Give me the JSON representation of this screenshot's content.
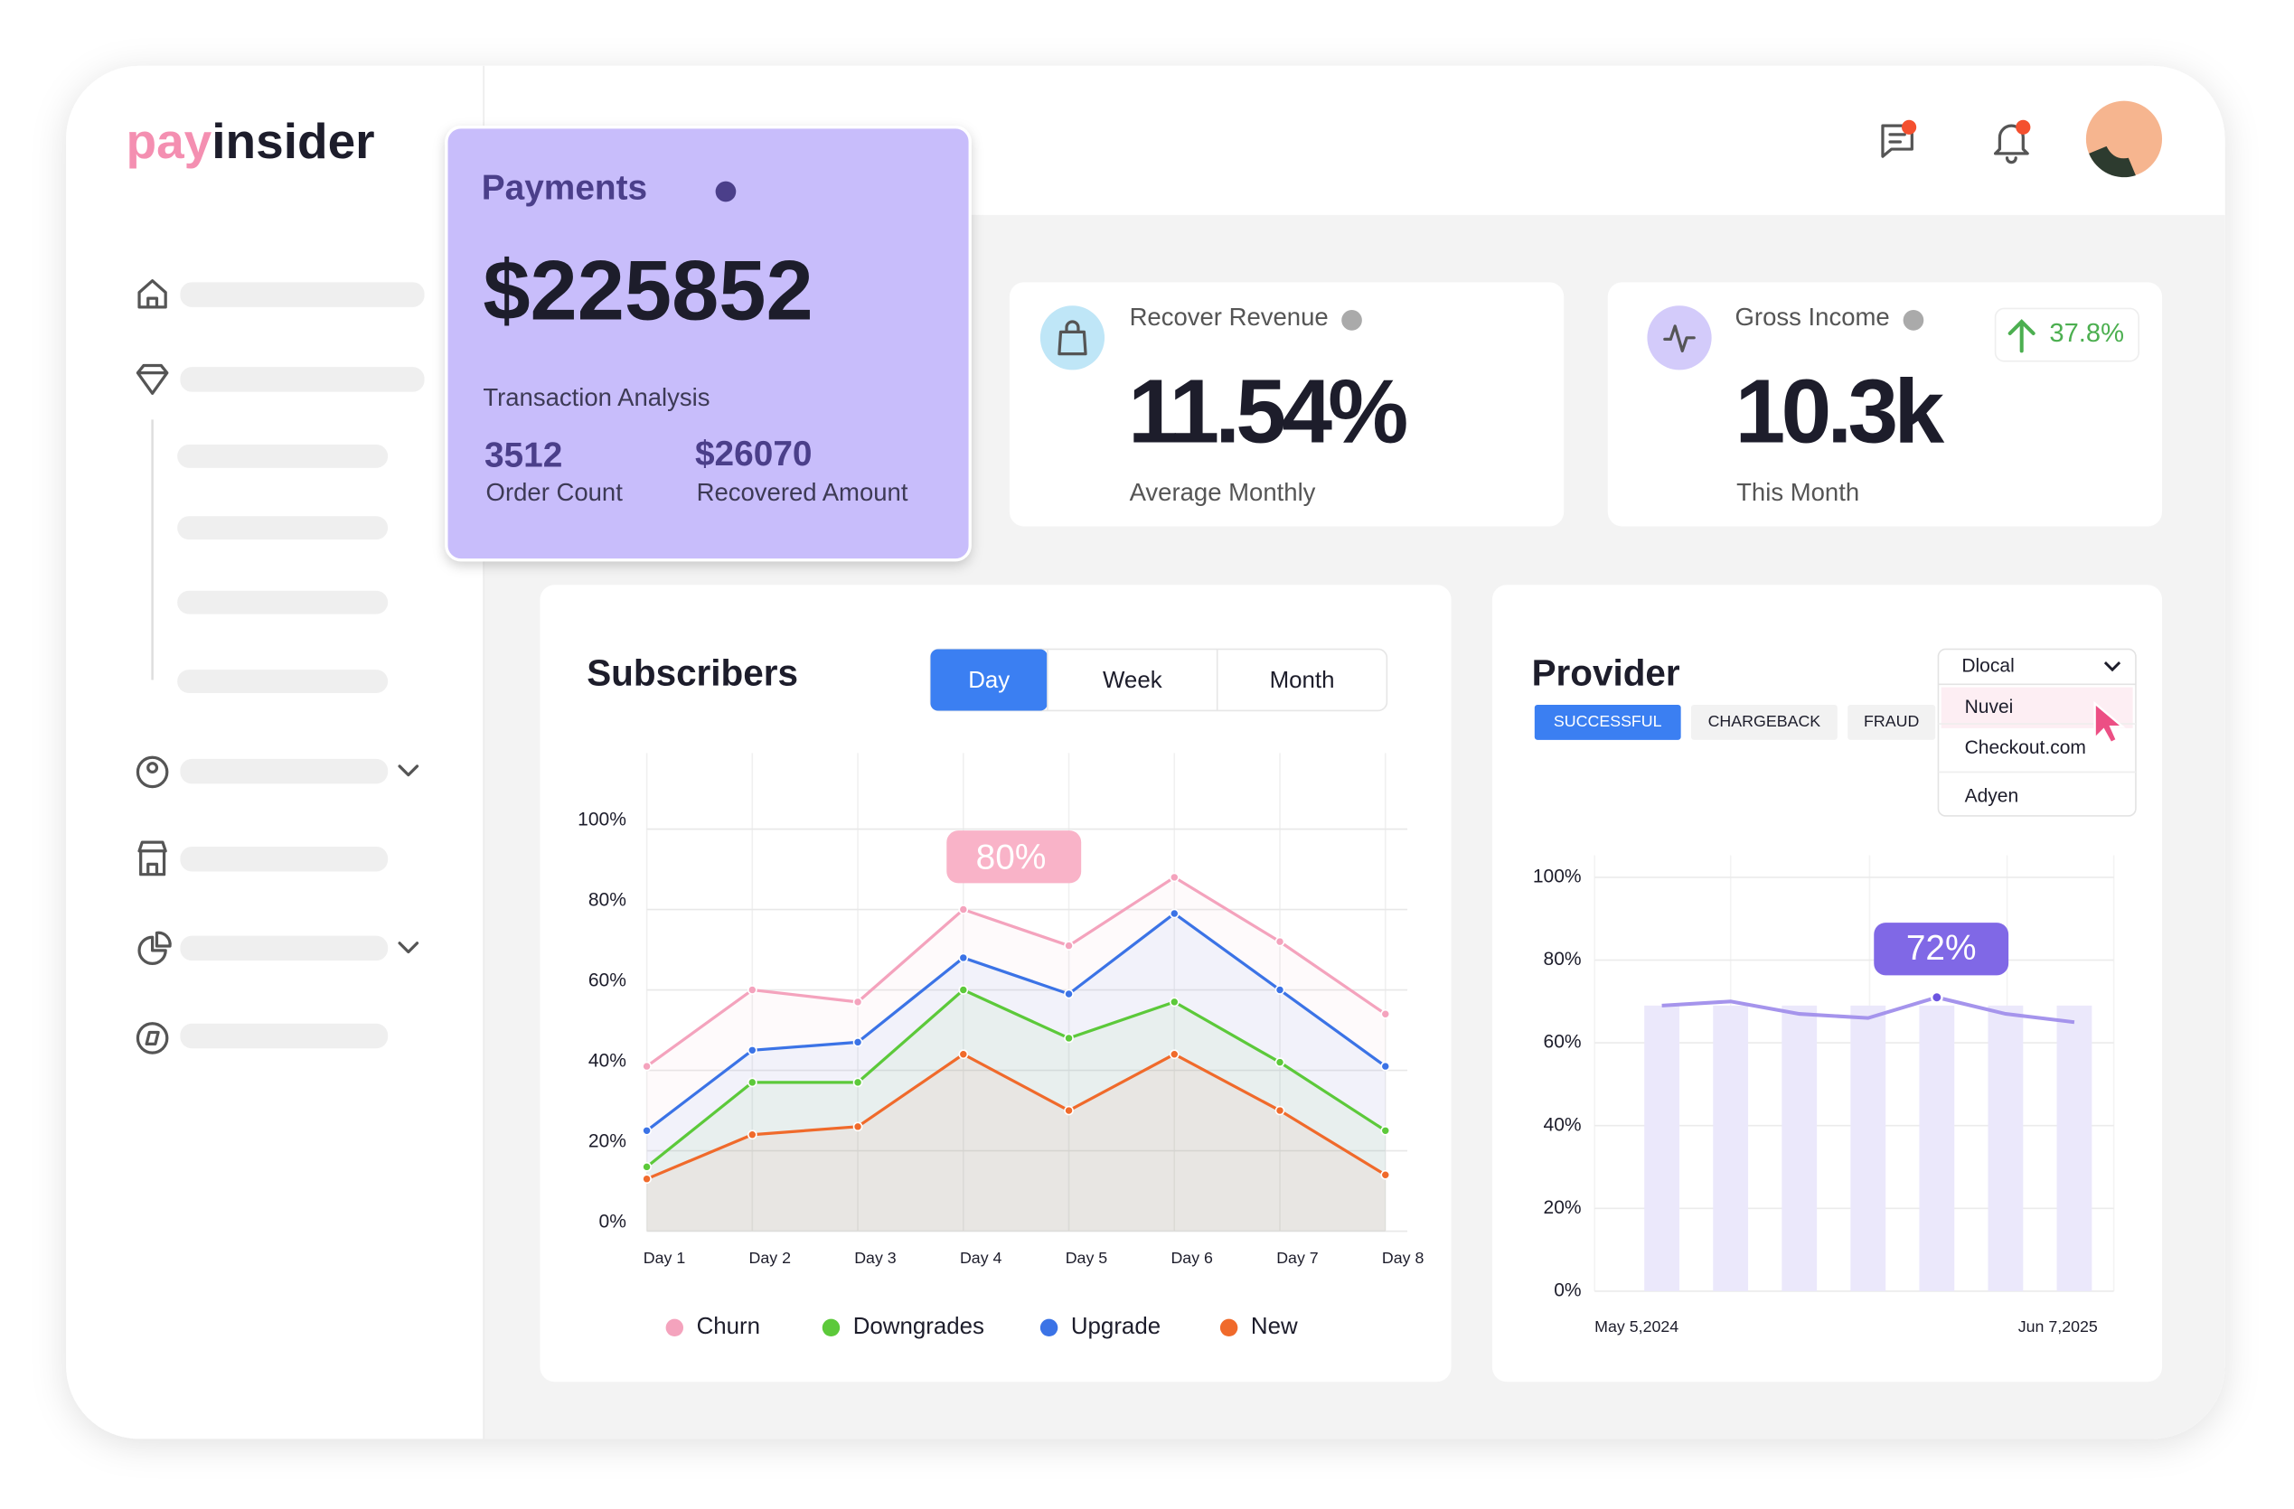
{
  "logo": {
    "part1": "pay",
    "part2": "insider"
  },
  "payments": {
    "title": "Payments",
    "amount": "$225852",
    "subtitle": "Transaction Analysis",
    "order_count": "3512",
    "order_count_label": "Order Count",
    "recovered_amount": "$26070",
    "recovered_amount_label": "Recovered Amount"
  },
  "recover_revenue": {
    "title": "Recover Revenue",
    "value": "11.54%",
    "caption": "Average Monthly"
  },
  "gross_income": {
    "title": "Gross Income",
    "value": "10.3k",
    "caption": "This Month",
    "change": "37.8%"
  },
  "chart_data": [
    {
      "type": "line",
      "title": "Subscribers",
      "tabs": [
        "Day",
        "Week",
        "Month"
      ],
      "selected_tab": "Day",
      "categories": [
        "Day 1",
        "Day 2",
        "Day 3",
        "Day 4",
        "Day 5",
        "Day 6",
        "Day 7",
        "Day 8"
      ],
      "series": [
        {
          "name": "Churn",
          "color": "#f4a3bd",
          "values": [
            41,
            60,
            57,
            80,
            71,
            88,
            72,
            54
          ]
        },
        {
          "name": "Downgrades",
          "color": "#5cc93a",
          "values": [
            16,
            37,
            37,
            60,
            48,
            57,
            42,
            25
          ]
        },
        {
          "name": "Upgrade",
          "color": "#3b73e6",
          "values": [
            25,
            45,
            47,
            68,
            59,
            79,
            60,
            41
          ]
        },
        {
          "name": "New",
          "color": "#f06a2b",
          "values": [
            13,
            24,
            26,
            44,
            30,
            44,
            30,
            14
          ]
        }
      ],
      "ylim": [
        0,
        100
      ],
      "yticks": [
        {
          "value": 0,
          "label": "0%"
        },
        {
          "value": 20,
          "label": "20%"
        },
        {
          "value": 40,
          "label": "40%"
        },
        {
          "value": 60,
          "label": "60%"
        },
        {
          "value": 80,
          "label": "80%"
        },
        {
          "value": 100,
          "label": "100%"
        }
      ],
      "grid": true,
      "annotation": "80%"
    },
    {
      "type": "bar",
      "title": "Provider",
      "tabs": [
        "SUCCESSFUL",
        "CHARGEBACK",
        "FRAUD"
      ],
      "selected_tab": "SUCCESSFUL",
      "dropdown": {
        "selected": "Dlocal",
        "options": [
          "Nuvei",
          "Checkout.com",
          "Adyen"
        ],
        "hovered": "Nuvei"
      },
      "categories": [
        null,
        null,
        null,
        null,
        null,
        null,
        null
      ],
      "x_axis_labels": [
        "May 5,2024",
        "Jun 7,2025"
      ],
      "series": [
        {
          "type": "bar",
          "color": "#ebe8fb",
          "values": [
            69,
            69,
            69,
            69,
            69,
            69,
            69
          ]
        },
        {
          "type": "line",
          "color": "#a594ec",
          "values": [
            69,
            70,
            67,
            66,
            71,
            67,
            65
          ]
        }
      ],
      "ylim": [
        0,
        100
      ],
      "yticks": [
        {
          "value": 0,
          "label": "0%"
        },
        {
          "value": 20,
          "label": "20%"
        },
        {
          "value": 40,
          "label": "40%"
        },
        {
          "value": 60,
          "label": "60%"
        },
        {
          "value": 80,
          "label": "80%"
        },
        {
          "value": 100,
          "label": "100%"
        }
      ],
      "grid": true,
      "annotation": "72%"
    }
  ]
}
